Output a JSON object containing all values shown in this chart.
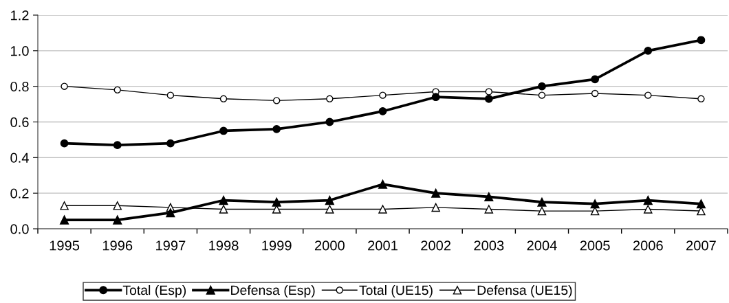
{
  "chart_data": {
    "type": "line",
    "categories": [
      "1995",
      "1996",
      "1997",
      "1998",
      "1999",
      "2000",
      "2001",
      "2002",
      "2003",
      "2004",
      "2005",
      "2006",
      "2007"
    ],
    "series": [
      {
        "name": "Total (Esp)",
        "color": "#000000",
        "marker": "circle",
        "values": [
          0.48,
          0.47,
          0.48,
          0.55,
          0.56,
          0.6,
          0.66,
          0.74,
          0.73,
          0.8,
          0.84,
          1.0,
          1.06
        ]
      },
      {
        "name": "Defensa (Esp)",
        "color": "#000000",
        "marker": "triangle",
        "values": [
          0.05,
          0.05,
          0.09,
          0.16,
          0.15,
          0.16,
          0.25,
          0.2,
          0.18,
          0.15,
          0.14,
          0.16,
          0.14
        ]
      },
      {
        "name": "Total (UE15)",
        "color": "#000000",
        "marker": "circle",
        "values": [
          0.8,
          0.78,
          0.75,
          0.73,
          0.72,
          0.73,
          0.75,
          0.77,
          0.77,
          0.75,
          0.76,
          0.75,
          0.73
        ]
      },
      {
        "name": "Defensa (UE15)",
        "color": "#000000",
        "marker": "triangle",
        "values": [
          0.13,
          0.13,
          0.12,
          0.11,
          0.11,
          0.11,
          0.11,
          0.12,
          0.11,
          0.1,
          0.1,
          0.11,
          0.1
        ]
      }
    ],
    "ylim": [
      0,
      1.2
    ],
    "yticks": [
      {
        "value": 0,
        "label": "0.0"
      },
      0.2,
      0.4,
      0.6,
      0.8,
      {
        "value": 1,
        "label": "1.0"
      },
      1.2
    ],
    "grid": "y",
    "legend": "bottom",
    "line_style": "solid"
  }
}
